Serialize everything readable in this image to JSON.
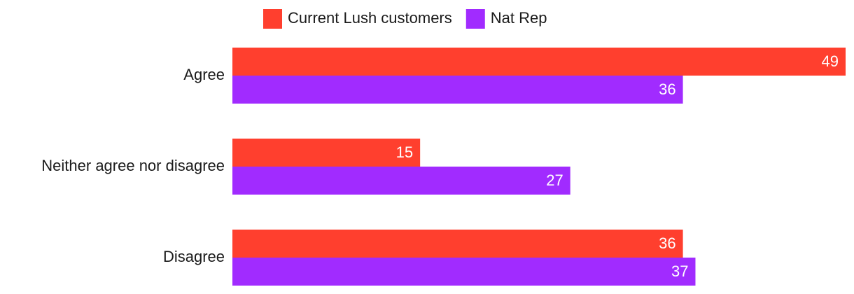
{
  "chart_data": {
    "type": "hbar",
    "categories": [
      "Agree",
      "Neither agree nor disagree",
      "Disagree"
    ],
    "series": [
      {
        "name": "Current Lush customers",
        "color": "#ff3f2e",
        "values": [
          49,
          15,
          36
        ]
      },
      {
        "name": "Nat Rep",
        "color": "#a12bff",
        "values": [
          36,
          27,
          37
        ]
      }
    ]
  }
}
